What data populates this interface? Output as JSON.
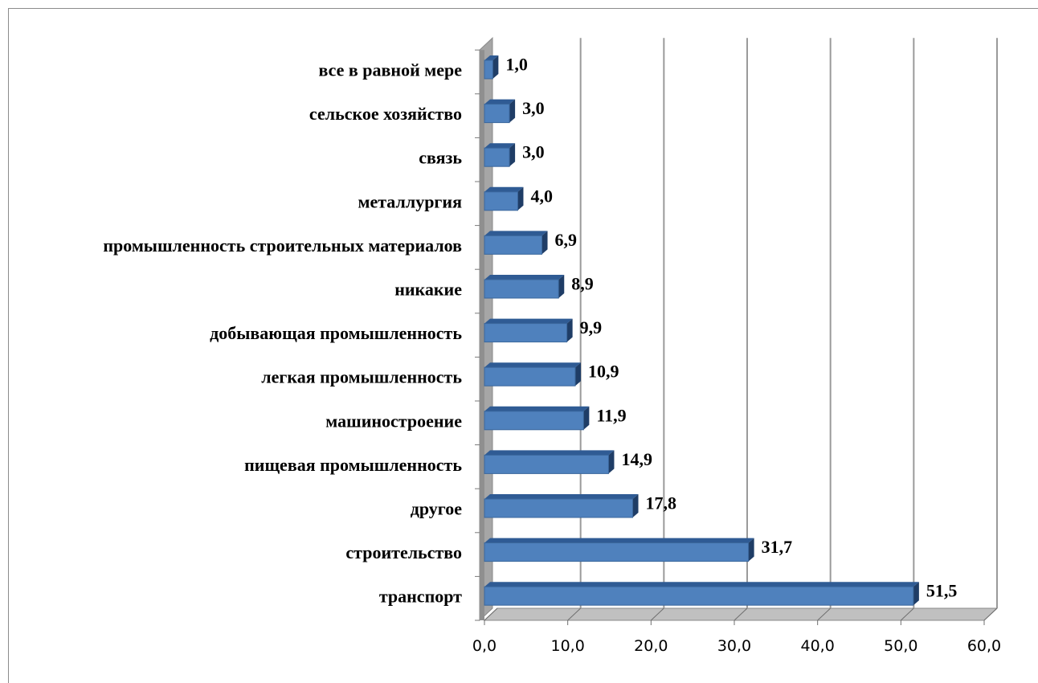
{
  "chart_data": {
    "type": "bar",
    "orientation": "horizontal",
    "title": "",
    "xlabel": "",
    "ylabel": "",
    "categories": [
      "транспорт",
      "строительство",
      "другое",
      "пищевая промышленность",
      "машиностроение",
      "легкая промышленность",
      "добывающая промышленность",
      "никакие",
      "промышленность строительных материалов",
      "металлургия",
      "связь",
      "сельское хозяйство",
      "все в равной мере"
    ],
    "values": [
      51.5,
      31.7,
      17.8,
      14.9,
      11.9,
      10.9,
      9.9,
      8.9,
      6.9,
      4.0,
      3.0,
      3.0,
      1.0
    ],
    "value_labels": [
      "51,5",
      "31,7",
      "17,8",
      "14,9",
      "11,9",
      "10,9",
      "9,9",
      "8,9",
      "6,9",
      "4,0",
      "3,0",
      "3,0",
      "1,0"
    ],
    "xlim": [
      0,
      60
    ],
    "x_ticks": [
      0,
      10,
      20,
      30,
      40,
      50,
      60
    ],
    "x_tick_labels": [
      "0,0",
      "10,0",
      "20,0",
      "30,0",
      "40,0",
      "50,0",
      "60,0"
    ],
    "grid": true,
    "legend": "none",
    "style": "3d",
    "colors": {
      "bar_front": "#4f81bd",
      "bar_top": "#2f5b94",
      "bar_side": "#1f3d66",
      "gridline": "#9a9a9a",
      "wall": "#a6a6a6",
      "floor": "#c0c0c0"
    }
  }
}
